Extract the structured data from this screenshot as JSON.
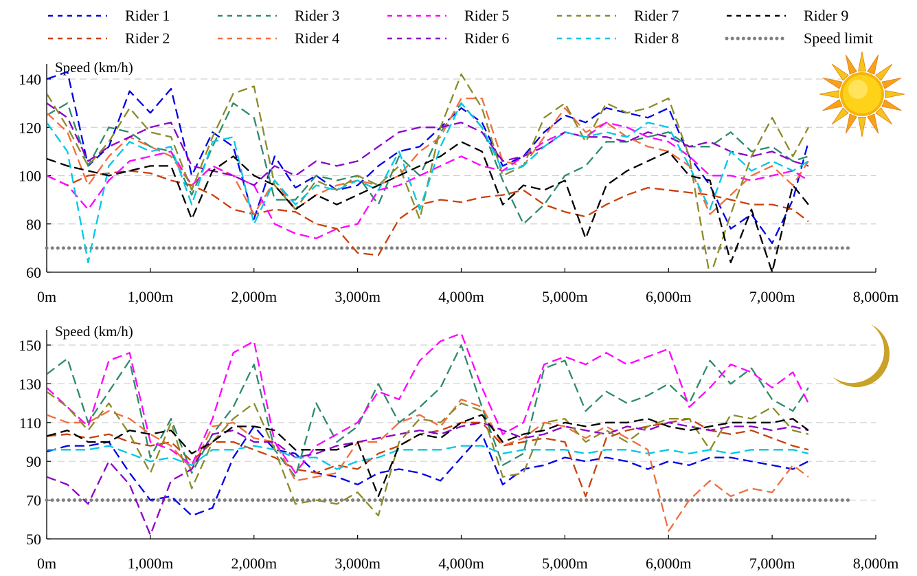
{
  "legend": [
    {
      "label": "Rider 1",
      "color": "#0000e6"
    },
    {
      "label": "Rider 2",
      "color": "#c8410a"
    },
    {
      "label": "Rider 3",
      "color": "#2e8b6a"
    },
    {
      "label": "Rider 4",
      "color": "#f26d3d"
    },
    {
      "label": "Rider 5",
      "color": "#ff00ff"
    },
    {
      "label": "Rider 6",
      "color": "#8b00c9"
    },
    {
      "label": "Rider 7",
      "color": "#8b8b2a"
    },
    {
      "label": "Rider 8",
      "color": "#00c8e6"
    },
    {
      "label": "Rider 9",
      "color": "#000000"
    },
    {
      "label": "Speed limit",
      "color": "#808080"
    }
  ],
  "chart_data": [
    {
      "type": "line",
      "panel": "day",
      "icon": "sun-icon",
      "ylabel": "Speed (km/h)",
      "xlim": [
        0,
        8000
      ],
      "ylim": [
        60,
        140
      ],
      "yticks": [
        "60",
        "80",
        "100",
        "120",
        "140"
      ],
      "xticks": [
        "0m",
        "1,000m",
        "2,000m",
        "3,000m",
        "4,000m",
        "5,000m",
        "6,000m",
        "7,000m",
        "8,000m"
      ],
      "x": [
        0,
        200,
        400,
        600,
        800,
        1000,
        1200,
        1400,
        1600,
        1800,
        2000,
        2200,
        2400,
        2600,
        2800,
        3000,
        3200,
        3400,
        3600,
        3800,
        4000,
        4200,
        4400,
        4600,
        4800,
        5000,
        5200,
        5400,
        5600,
        5800,
        6000,
        6200,
        6400,
        6600,
        6800,
        7000,
        7200,
        7350
      ],
      "speed_limit": 70,
      "series": [
        {
          "name": "Rider 1",
          "values": [
            140,
            143,
            104,
            112,
            135,
            126,
            136,
            100,
            118,
            112,
            82,
            108,
            95,
            100,
            94,
            96,
            104,
            110,
            112,
            120,
            128,
            122,
            104,
            108,
            118,
            125,
            122,
            128,
            126,
            124,
            128,
            108,
            96,
            78,
            84,
            72,
            90,
            114
          ]
        },
        {
          "name": "Rider 2",
          "values": [
            100,
            96,
            100,
            101,
            102,
            101,
            98,
            96,
            92,
            86,
            84,
            86,
            85,
            80,
            78,
            68,
            67,
            82,
            88,
            90,
            89,
            91,
            92,
            94,
            88,
            85,
            83,
            88,
            92,
            95,
            94,
            93,
            92,
            90,
            88,
            88,
            86,
            81
          ]
        },
        {
          "name": "Rider 3",
          "values": [
            125,
            130,
            104,
            120,
            118,
            112,
            110,
            92,
            112,
            130,
            124,
            90,
            90,
            100,
            98,
            100,
            88,
            108,
            100,
            118,
            130,
            120,
            98,
            80,
            88,
            100,
            104,
            114,
            114,
            116,
            118,
            112,
            112,
            118,
            110,
            112,
            106,
            108
          ]
        },
        {
          "name": "Rider 4",
          "values": [
            126,
            118,
            96,
            108,
            116,
            112,
            108,
            96,
            104,
            100,
            84,
            98,
            86,
            92,
            96,
            98,
            96,
            100,
            110,
            116,
            132,
            132,
            106,
            104,
            116,
            128,
            118,
            122,
            116,
            112,
            110,
            104,
            84,
            92,
            100,
            104,
            96,
            106
          ]
        },
        {
          "name": "Rider 5",
          "values": [
            100,
            96,
            86,
            98,
            106,
            108,
            110,
            96,
            104,
            100,
            96,
            80,
            76,
            74,
            78,
            80,
            94,
            96,
            100,
            104,
            108,
            104,
            102,
            108,
            114,
            118,
            116,
            122,
            120,
            116,
            114,
            108,
            100,
            100,
            98,
            100,
            102,
            98
          ]
        },
        {
          "name": "Rider 6",
          "values": [
            130,
            124,
            106,
            112,
            116,
            120,
            122,
            104,
            102,
            100,
            96,
            104,
            100,
            106,
            104,
            106,
            112,
            118,
            120,
            120,
            122,
            118,
            106,
            108,
            112,
            118,
            116,
            116,
            114,
            118,
            116,
            112,
            114,
            110,
            108,
            110,
            106,
            104
          ]
        },
        {
          "name": "Rider 7",
          "values": [
            134,
            120,
            104,
            114,
            128,
            118,
            116,
            94,
            116,
            134,
            137,
            96,
            86,
            98,
            94,
            100,
            96,
            104,
            82,
            120,
            142,
            128,
            100,
            104,
            124,
            130,
            114,
            130,
            126,
            128,
            132,
            108,
            58,
            84,
            108,
            124,
            108,
            120
          ]
        },
        {
          "name": "Rider 8",
          "values": [
            122,
            110,
            64,
            104,
            114,
            110,
            112,
            88,
            114,
            116,
            80,
            98,
            88,
            96,
            94,
            98,
            94,
            110,
            86,
            112,
            130,
            120,
            102,
            104,
            112,
            118,
            116,
            118,
            116,
            122,
            120,
            104,
            86,
            110,
            102,
            106,
            102,
            106
          ]
        },
        {
          "name": "Rider 9",
          "values": [
            107,
            104,
            102,
            100,
            102,
            104,
            104,
            82,
            102,
            108,
            100,
            96,
            86,
            92,
            88,
            92,
            96,
            100,
            104,
            108,
            114,
            110,
            88,
            96,
            94,
            98,
            74,
            96,
            102,
            106,
            110,
            100,
            98,
            64,
            86,
            60,
            96,
            88
          ]
        }
      ]
    },
    {
      "type": "line",
      "panel": "night",
      "icon": "moon-icon",
      "ylabel": "Speed (km/h)",
      "xlim": [
        0,
        8000
      ],
      "ylim": [
        50,
        150
      ],
      "yticks": [
        "50",
        "70",
        "90",
        "110",
        "130",
        "150"
      ],
      "xticks": [
        "0m",
        "1,000m",
        "2,000m",
        "3,000m",
        "4,000m",
        "5,000m",
        "6,000m",
        "7,000m",
        "8,000m"
      ],
      "x": [
        0,
        200,
        400,
        600,
        800,
        1000,
        1200,
        1400,
        1600,
        1800,
        2000,
        2200,
        2400,
        2600,
        2800,
        3000,
        3200,
        3400,
        3600,
        3800,
        4000,
        4200,
        4400,
        4600,
        4800,
        5000,
        5200,
        5400,
        5600,
        5800,
        6000,
        6200,
        6400,
        6600,
        6800,
        7000,
        7200,
        7350
      ],
      "speed_limit": 70,
      "series": [
        {
          "name": "Rider 1",
          "values": [
            95,
            98,
            98,
            100,
            84,
            70,
            72,
            62,
            66,
            92,
            108,
            96,
            94,
            84,
            82,
            78,
            84,
            86,
            84,
            80,
            92,
            104,
            78,
            86,
            88,
            92,
            90,
            92,
            90,
            86,
            90,
            88,
            92,
            92,
            90,
            88,
            86,
            90
          ]
        },
        {
          "name": "Rider 2",
          "values": [
            103,
            104,
            102,
            104,
            100,
            98,
            100,
            90,
            100,
            100,
            96,
            92,
            86,
            84,
            88,
            86,
            94,
            98,
            104,
            106,
            110,
            110,
            98,
            100,
            102,
            100,
            72,
            102,
            106,
            108,
            110,
            112,
            106,
            104,
            106,
            102,
            98,
            96
          ]
        },
        {
          "name": "Rider 3",
          "values": [
            135,
            143,
            110,
            126,
            142,
            92,
            112,
            84,
            104,
            118,
            140,
            96,
            82,
            120,
            100,
            108,
            130,
            110,
            118,
            128,
            150,
            118,
            88,
            94,
            138,
            142,
            116,
            126,
            120,
            124,
            130,
            120,
            142,
            130,
            138,
            122,
            116,
            128
          ]
        },
        {
          "name": "Rider 4",
          "values": [
            114,
            110,
            110,
            116,
            112,
            104,
            98,
            86,
            108,
            110,
            102,
            100,
            80,
            82,
            84,
            100,
            100,
            110,
            114,
            108,
            122,
            118,
            98,
            102,
            110,
            108,
            102,
            108,
            102,
            96,
            54,
            70,
            80,
            72,
            76,
            74,
            88,
            82
          ]
        },
        {
          "name": "Rider 5",
          "values": [
            128,
            118,
            108,
            142,
            146,
            100,
            96,
            88,
            112,
            146,
            152,
            100,
            84,
            98,
            104,
            110,
            126,
            122,
            142,
            152,
            156,
            128,
            104,
            110,
            140,
            144,
            140,
            146,
            140,
            144,
            148,
            118,
            128,
            140,
            136,
            128,
            136,
            120
          ]
        },
        {
          "name": "Rider 6",
          "values": [
            82,
            78,
            68,
            90,
            78,
            52,
            80,
            86,
            104,
            106,
            100,
            100,
            92,
            94,
            98,
            100,
            102,
            104,
            106,
            104,
            108,
            110,
            106,
            102,
            104,
            108,
            106,
            104,
            108,
            106,
            110,
            108,
            106,
            108,
            108,
            106,
            108,
            106
          ]
        },
        {
          "name": "Rider 7",
          "values": [
            126,
            118,
            106,
            120,
            104,
            84,
            110,
            76,
            100,
            112,
            120,
            96,
            68,
            70,
            68,
            74,
            62,
            100,
            112,
            110,
            120,
            116,
            82,
            84,
            110,
            112,
            100,
            106,
            100,
            108,
            112,
            112,
            96,
            114,
            112,
            118,
            106,
            104
          ]
        },
        {
          "name": "Rider 8",
          "values": [
            96,
            96,
            96,
            98,
            94,
            90,
            92,
            88,
            96,
            96,
            98,
            96,
            92,
            92,
            86,
            90,
            92,
            96,
            96,
            96,
            98,
            98,
            94,
            96,
            96,
            96,
            94,
            96,
            96,
            94,
            96,
            94,
            96,
            94,
            96,
            96,
            96,
            94
          ]
        },
        {
          "name": "Rider 9",
          "values": [
            103,
            106,
            100,
            100,
            106,
            104,
            106,
            94,
            100,
            108,
            108,
            106,
            96,
            96,
            96,
            100,
            72,
            98,
            104,
            102,
            110,
            114,
            100,
            104,
            106,
            110,
            108,
            110,
            110,
            112,
            108,
            106,
            108,
            110,
            110,
            110,
            112,
            106
          ]
        }
      ]
    }
  ]
}
